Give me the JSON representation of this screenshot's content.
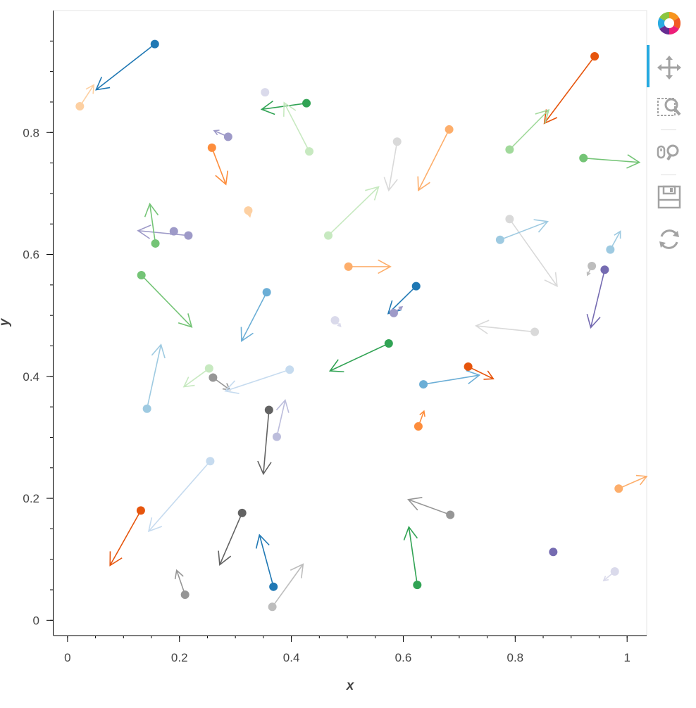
{
  "chart_data": {
    "type": "vector-field",
    "xlabel": "x",
    "ylabel": "y",
    "xlim": [
      -0.025,
      1.035
    ],
    "ylim": [
      -0.025,
      1.0
    ],
    "x_ticks": [
      0,
      0.2,
      0.4,
      0.6,
      0.8,
      1
    ],
    "x_tick_labels": [
      "0",
      "0.2",
      "0.4",
      "0.6",
      "0.8",
      "1"
    ],
    "y_ticks": [
      0,
      0.2,
      0.4,
      0.6,
      0.8
    ],
    "y_tick_labels": [
      "0",
      "0.2",
      "0.4",
      "0.6",
      "0.8"
    ],
    "grid": false,
    "legend": "none",
    "points": [
      {
        "x": 0.156,
        "y": 0.945,
        "dx": -0.105,
        "dy": -0.075,
        "color": "#1f78b4"
      },
      {
        "x": 0.022,
        "y": 0.843,
        "dx": 0.025,
        "dy": 0.035,
        "color": "#fdd0a2"
      },
      {
        "x": 0.353,
        "y": 0.866,
        "dx": 0.0,
        "dy": 0.0,
        "color": "#dadaeb"
      },
      {
        "x": 0.427,
        "y": 0.848,
        "dx": -0.08,
        "dy": -0.01,
        "color": "#31a354"
      },
      {
        "x": 0.432,
        "y": 0.769,
        "dx": -0.045,
        "dy": 0.08,
        "color": "#c7e9c0"
      },
      {
        "x": 0.287,
        "y": 0.793,
        "dx": -0.025,
        "dy": 0.01,
        "color": "#9e9ac8"
      },
      {
        "x": 0.258,
        "y": 0.775,
        "dx": 0.025,
        "dy": -0.06,
        "color": "#fd8d3c"
      },
      {
        "x": 0.323,
        "y": 0.672,
        "dx": 0.003,
        "dy": -0.01,
        "color": "#fdd0a2"
      },
      {
        "x": 0.589,
        "y": 0.785,
        "dx": -0.015,
        "dy": -0.08,
        "color": "#d9d9d9"
      },
      {
        "x": 0.682,
        "y": 0.805,
        "dx": -0.055,
        "dy": -0.1,
        "color": "#fdae6b"
      },
      {
        "x": 0.466,
        "y": 0.631,
        "dx": 0.09,
        "dy": 0.08,
        "color": "#c7e9c0"
      },
      {
        "x": 0.216,
        "y": 0.631,
        "dx": -0.09,
        "dy": 0.008,
        "color": "#9e9ac8"
      },
      {
        "x": 0.19,
        "y": 0.638,
        "dx": -0.005,
        "dy": -0.005,
        "color": "#9e9ac8"
      },
      {
        "x": 0.157,
        "y": 0.618,
        "dx": -0.01,
        "dy": 0.065,
        "color": "#74c476"
      },
      {
        "x": 0.942,
        "y": 0.925,
        "dx": -0.09,
        "dy": -0.11,
        "color": "#e6550d"
      },
      {
        "x": 0.79,
        "y": 0.772,
        "dx": 0.07,
        "dy": 0.065,
        "color": "#a1d99b"
      },
      {
        "x": 0.922,
        "y": 0.758,
        "dx": 0.1,
        "dy": -0.007,
        "color": "#74c476"
      },
      {
        "x": 0.79,
        "y": 0.658,
        "dx": 0.085,
        "dy": -0.11,
        "color": "#d9d9d9"
      },
      {
        "x": 0.773,
        "y": 0.624,
        "dx": 0.085,
        "dy": 0.03,
        "color": "#9ecae1"
      },
      {
        "x": 0.97,
        "y": 0.608,
        "dx": 0.018,
        "dy": 0.03,
        "color": "#9ecae1"
      },
      {
        "x": 0.937,
        "y": 0.581,
        "dx": -0.008,
        "dy": -0.015,
        "color": "#bdbdbd"
      },
      {
        "x": 0.96,
        "y": 0.575,
        "dx": -0.025,
        "dy": -0.095,
        "color": "#756bb1"
      },
      {
        "x": 0.132,
        "y": 0.566,
        "dx": 0.09,
        "dy": -0.085,
        "color": "#74c476"
      },
      {
        "x": 0.356,
        "y": 0.538,
        "dx": -0.045,
        "dy": -0.08,
        "color": "#6baed6"
      },
      {
        "x": 0.502,
        "y": 0.58,
        "dx": 0.075,
        "dy": 0.0,
        "color": "#fdae6b"
      },
      {
        "x": 0.623,
        "y": 0.548,
        "dx": -0.05,
        "dy": -0.045,
        "color": "#1f78b4"
      },
      {
        "x": 0.583,
        "y": 0.504,
        "dx": 0.015,
        "dy": 0.01,
        "color": "#9e9ac8"
      },
      {
        "x": 0.478,
        "y": 0.492,
        "dx": 0.01,
        "dy": -0.01,
        "color": "#dadaeb"
      },
      {
        "x": 0.835,
        "y": 0.473,
        "dx": -0.105,
        "dy": 0.01,
        "color": "#d9d9d9"
      },
      {
        "x": 0.574,
        "y": 0.454,
        "dx": -0.105,
        "dy": -0.045,
        "color": "#31a354"
      },
      {
        "x": 0.142,
        "y": 0.347,
        "dx": 0.025,
        "dy": 0.105,
        "color": "#9ecae1"
      },
      {
        "x": 0.253,
        "y": 0.413,
        "dx": -0.045,
        "dy": -0.03,
        "color": "#c7e9c0"
      },
      {
        "x": 0.26,
        "y": 0.398,
        "dx": 0.03,
        "dy": -0.02,
        "color": "#969696"
      },
      {
        "x": 0.397,
        "y": 0.411,
        "dx": -0.115,
        "dy": -0.035,
        "color": "#c6dbef"
      },
      {
        "x": 0.716,
        "y": 0.416,
        "dx": 0.045,
        "dy": -0.02,
        "color": "#e6550d"
      },
      {
        "x": 0.636,
        "y": 0.387,
        "dx": 0.1,
        "dy": 0.015,
        "color": "#6baed6"
      },
      {
        "x": 0.36,
        "y": 0.345,
        "dx": -0.01,
        "dy": -0.105,
        "color": "#636363"
      },
      {
        "x": 0.374,
        "y": 0.301,
        "dx": 0.015,
        "dy": 0.06,
        "color": "#bcbddc"
      },
      {
        "x": 0.627,
        "y": 0.318,
        "dx": 0.01,
        "dy": 0.025,
        "color": "#fd8d3c"
      },
      {
        "x": 0.255,
        "y": 0.261,
        "dx": -0.11,
        "dy": -0.115,
        "color": "#c6dbef"
      },
      {
        "x": 0.131,
        "y": 0.18,
        "dx": -0.055,
        "dy": -0.09,
        "color": "#e6550d"
      },
      {
        "x": 0.312,
        "y": 0.176,
        "dx": -0.04,
        "dy": -0.085,
        "color": "#636363"
      },
      {
        "x": 0.684,
        "y": 0.173,
        "dx": -0.075,
        "dy": 0.025,
        "color": "#969696"
      },
      {
        "x": 0.985,
        "y": 0.216,
        "dx": 0.05,
        "dy": 0.02,
        "color": "#fdae6b"
      },
      {
        "x": 0.868,
        "y": 0.112,
        "dx": 0.0,
        "dy": 0.0,
        "color": "#756bb1"
      },
      {
        "x": 0.625,
        "y": 0.058,
        "dx": -0.015,
        "dy": 0.095,
        "color": "#31a354"
      },
      {
        "x": 0.368,
        "y": 0.055,
        "dx": -0.025,
        "dy": 0.085,
        "color": "#1f78b4"
      },
      {
        "x": 0.21,
        "y": 0.042,
        "dx": -0.015,
        "dy": 0.04,
        "color": "#969696"
      },
      {
        "x": 0.366,
        "y": 0.022,
        "dx": 0.055,
        "dy": 0.07,
        "color": "#bdbdbd"
      },
      {
        "x": 0.978,
        "y": 0.08,
        "dx": -0.02,
        "dy": -0.015,
        "color": "#dadaeb"
      }
    ]
  },
  "toolbar": {
    "logo_icon": "bokeh-logo-icon",
    "tools": [
      {
        "name": "pan-tool",
        "icon": "move-arrows-icon",
        "active": true
      },
      {
        "name": "box-zoom-tool",
        "icon": "box-zoom-icon",
        "active": false
      },
      {
        "name": "wheel-zoom-tool",
        "icon": "wheel-zoom-icon",
        "active": false
      },
      {
        "name": "save-tool",
        "icon": "save-icon",
        "active": false
      },
      {
        "name": "reset-tool",
        "icon": "reset-icon",
        "active": false
      }
    ]
  }
}
